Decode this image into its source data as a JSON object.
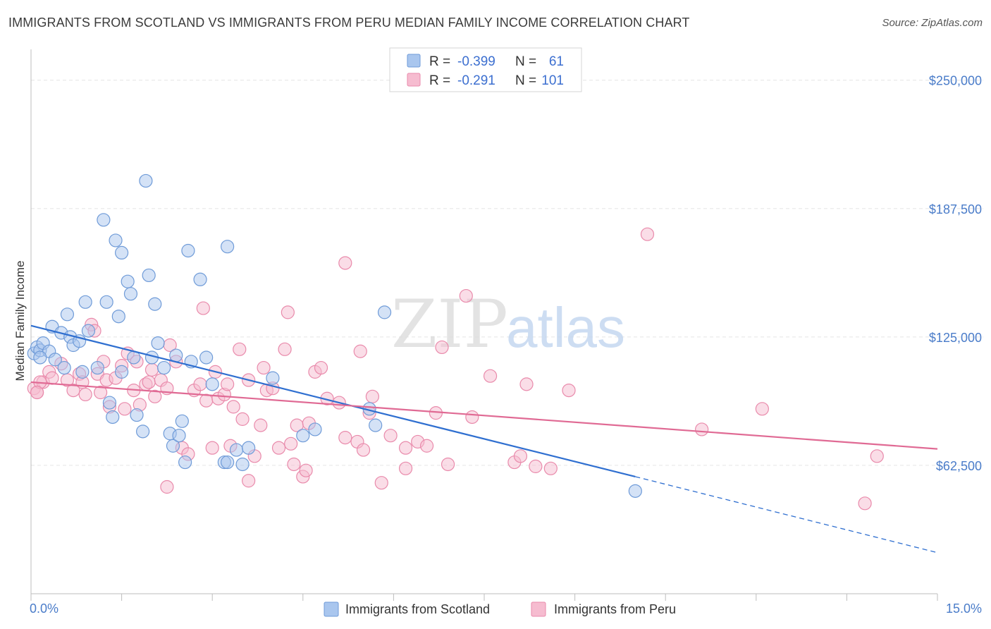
{
  "title": "IMMIGRANTS FROM SCOTLAND VS IMMIGRANTS FROM PERU MEDIAN FAMILY INCOME CORRELATION CHART",
  "source": "Source: ZipAtlas.com",
  "watermark": {
    "part1": "ZIP",
    "part2": "atlas"
  },
  "colors": {
    "scotland_fill": "#a9c6ee",
    "scotland_stroke": "#6f9bd8",
    "scotland_line": "#2f6fd0",
    "peru_fill": "#f6bcd0",
    "peru_stroke": "#e98aab",
    "peru_line": "#e06a94",
    "grid": "#e5e5e5",
    "tick_text": "#4a7cc9"
  },
  "legend": {
    "r_label": "R =",
    "n_label": "N =",
    "scotland": {
      "r": "-0.399",
      "n": "61"
    },
    "peru": {
      "r": "-0.291",
      "n": "101"
    }
  },
  "chart_data": {
    "type": "scatter",
    "xlabel": "",
    "ylabel": "Median Family Income",
    "xlim": [
      0,
      15
    ],
    "ylim": [
      0,
      265000
    ],
    "x_tick_labels": {
      "min": "0.0%",
      "max": "15.0%"
    },
    "y_ticks": [
      62500,
      125000,
      187500,
      250000
    ],
    "y_tick_labels": [
      "$62,500",
      "$125,000",
      "$187,500",
      "$250,000"
    ],
    "grid": true,
    "legend_position": "top-center",
    "series": [
      {
        "name": "Immigrants from Scotland",
        "trend": {
          "x0": 0.0,
          "y0": 130500,
          "x1": 10.0,
          "y1": 57000,
          "dash_to_x": 15.0,
          "dash_to_y": 20000
        },
        "points": [
          [
            0.05,
            117000
          ],
          [
            0.1,
            120000
          ],
          [
            0.15,
            118500
          ],
          [
            0.2,
            122000
          ],
          [
            0.3,
            118000
          ],
          [
            0.35,
            130000
          ],
          [
            0.4,
            114000
          ],
          [
            0.5,
            127000
          ],
          [
            0.55,
            110000
          ],
          [
            0.6,
            136000
          ],
          [
            0.65,
            125000
          ],
          [
            0.7,
            121000
          ],
          [
            0.8,
            123000
          ],
          [
            0.85,
            108000
          ],
          [
            0.9,
            142000
          ],
          [
            0.95,
            128000
          ],
          [
            1.1,
            110000
          ],
          [
            1.2,
            182000
          ],
          [
            1.25,
            142000
          ],
          [
            1.3,
            93000
          ],
          [
            1.35,
            86000
          ],
          [
            1.4,
            172000
          ],
          [
            1.45,
            135000
          ],
          [
            1.5,
            166000
          ],
          [
            1.5,
            108000
          ],
          [
            1.6,
            152000
          ],
          [
            1.65,
            146000
          ],
          [
            1.7,
            115000
          ],
          [
            1.75,
            87000
          ],
          [
            1.85,
            79000
          ],
          [
            1.9,
            201000
          ],
          [
            1.95,
            155000
          ],
          [
            2.0,
            115000
          ],
          [
            2.05,
            141000
          ],
          [
            2.1,
            122000
          ],
          [
            2.2,
            110000
          ],
          [
            2.3,
            78000
          ],
          [
            2.35,
            72000
          ],
          [
            2.45,
            77000
          ],
          [
            2.5,
            84000
          ],
          [
            2.55,
            64000
          ],
          [
            2.6,
            167000
          ],
          [
            2.4,
            116000
          ],
          [
            2.65,
            113000
          ],
          [
            2.8,
            153000
          ],
          [
            2.9,
            115000
          ],
          [
            3.0,
            102000
          ],
          [
            3.2,
            64000
          ],
          [
            3.25,
            64000
          ],
          [
            3.25,
            169000
          ],
          [
            3.4,
            70000
          ],
          [
            3.5,
            63000
          ],
          [
            3.6,
            71000
          ],
          [
            4.0,
            105000
          ],
          [
            4.5,
            77000
          ],
          [
            4.7,
            80000
          ],
          [
            5.6,
            90000
          ],
          [
            5.7,
            82000
          ],
          [
            5.85,
            137000
          ],
          [
            10.0,
            50000
          ],
          [
            0.15,
            115000
          ]
        ]
      },
      {
        "name": "Immigrants from Peru",
        "trend": {
          "x0": 0.0,
          "y0": 103000,
          "x1": 15.0,
          "y1": 70500
        },
        "points": [
          [
            0.05,
            100000
          ],
          [
            0.1,
            98000
          ],
          [
            0.2,
            103000
          ],
          [
            0.3,
            108000
          ],
          [
            0.35,
            105000
          ],
          [
            0.5,
            112000
          ],
          [
            0.6,
            104000
          ],
          [
            0.7,
            99000
          ],
          [
            0.8,
            107000
          ],
          [
            0.85,
            103000
          ],
          [
            0.9,
            97000
          ],
          [
            1.0,
            131000
          ],
          [
            1.05,
            128000
          ],
          [
            1.1,
            107000
          ],
          [
            1.2,
            113000
          ],
          [
            1.25,
            104000
          ],
          [
            1.3,
            91000
          ],
          [
            1.4,
            105000
          ],
          [
            1.5,
            111000
          ],
          [
            1.55,
            90000
          ],
          [
            1.6,
            117000
          ],
          [
            1.7,
            99000
          ],
          [
            1.75,
            113000
          ],
          [
            1.8,
            92000
          ],
          [
            1.9,
            102000
          ],
          [
            1.95,
            103000
          ],
          [
            2.0,
            109000
          ],
          [
            2.05,
            96000
          ],
          [
            2.15,
            104000
          ],
          [
            2.25,
            100000
          ],
          [
            2.3,
            121000
          ],
          [
            2.4,
            113000
          ],
          [
            2.5,
            71000
          ],
          [
            2.6,
            68000
          ],
          [
            2.7,
            99000
          ],
          [
            2.8,
            102000
          ],
          [
            2.9,
            94000
          ],
          [
            3.0,
            71000
          ],
          [
            3.05,
            108000
          ],
          [
            3.1,
            95000
          ],
          [
            3.2,
            97000
          ],
          [
            3.3,
            72000
          ],
          [
            3.35,
            91000
          ],
          [
            3.45,
            119000
          ],
          [
            3.5,
            85000
          ],
          [
            3.6,
            104000
          ],
          [
            3.7,
            67000
          ],
          [
            3.8,
            82000
          ],
          [
            3.85,
            110000
          ],
          [
            3.9,
            99000
          ],
          [
            4.0,
            100000
          ],
          [
            4.1,
            71000
          ],
          [
            4.2,
            119000
          ],
          [
            4.3,
            73000
          ],
          [
            4.35,
            63000
          ],
          [
            4.4,
            82000
          ],
          [
            4.5,
            57000
          ],
          [
            4.6,
            83000
          ],
          [
            4.7,
            108000
          ],
          [
            4.8,
            110000
          ],
          [
            4.9,
            95000
          ],
          [
            5.1,
            93000
          ],
          [
            5.2,
            76000
          ],
          [
            5.4,
            74000
          ],
          [
            5.5,
            70000
          ],
          [
            5.6,
            88000
          ],
          [
            5.65,
            96000
          ],
          [
            5.8,
            54000
          ],
          [
            5.95,
            77000
          ],
          [
            6.2,
            71000
          ],
          [
            6.4,
            74000
          ],
          [
            6.55,
            72000
          ],
          [
            6.7,
            88000
          ],
          [
            6.8,
            120000
          ],
          [
            6.9,
            63000
          ],
          [
            7.2,
            145000
          ],
          [
            7.3,
            86000
          ],
          [
            7.6,
            106000
          ],
          [
            8.0,
            64000
          ],
          [
            8.1,
            67000
          ],
          [
            8.2,
            102000
          ],
          [
            8.35,
            62000
          ],
          [
            8.9,
            99000
          ],
          [
            10.2,
            175000
          ],
          [
            11.1,
            80000
          ],
          [
            12.1,
            90000
          ],
          [
            13.8,
            44000
          ],
          [
            14.0,
            67000
          ],
          [
            0.15,
            103000
          ],
          [
            1.15,
            98000
          ],
          [
            2.25,
            52000
          ],
          [
            2.85,
            139000
          ],
          [
            3.25,
            102000
          ],
          [
            3.6,
            55000
          ],
          [
            4.25,
            137000
          ],
          [
            4.55,
            60000
          ],
          [
            5.2,
            161000
          ],
          [
            5.45,
            118000
          ],
          [
            6.2,
            61000
          ],
          [
            8.6,
            61000
          ],
          [
            0.1,
            98000
          ]
        ]
      }
    ]
  }
}
